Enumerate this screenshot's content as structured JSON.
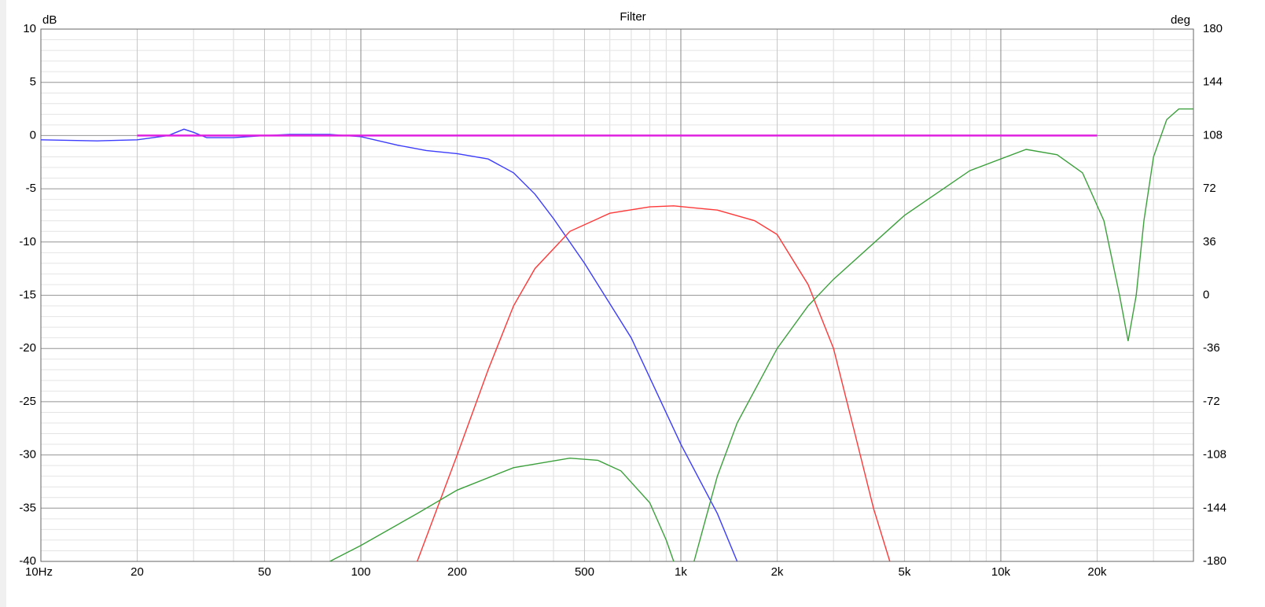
{
  "chart_data": {
    "type": "line",
    "title": "Filter",
    "y_label": "dB",
    "y2_label": "deg",
    "xscale": "log",
    "grid": true,
    "minor_grid": true,
    "xlim": [
      10,
      40000
    ],
    "ylim": [
      -40,
      10
    ],
    "y2lim": [
      -180,
      180
    ],
    "xticks": [
      {
        "value": 10,
        "label": "10Hz"
      },
      20,
      50,
      100,
      200,
      500,
      {
        "value": 1000,
        "label": "1k"
      },
      {
        "value": 2000,
        "label": "2k"
      },
      {
        "value": 5000,
        "label": "5k"
      },
      {
        "value": 10000,
        "label": "10k"
      },
      {
        "value": 20000,
        "label": "20k"
      }
    ],
    "yticks": [
      10,
      5,
      0,
      -5,
      -10,
      -15,
      -20,
      -25,
      -30,
      -35,
      -40
    ],
    "y2ticks": [
      180,
      144,
      108,
      72,
      36,
      0,
      -36,
      -72,
      -108,
      -144,
      -180
    ],
    "series": [
      {
        "color": "#3c3cff",
        "x": [
          10,
          15,
          20,
          25,
          28,
          30,
          33,
          40,
          50,
          60,
          80,
          100,
          130,
          160,
          200,
          250,
          300,
          350,
          400,
          500,
          700,
          1000,
          1300,
          1500
        ],
        "values": [
          -0.4,
          -0.5,
          -0.4,
          0,
          0.6,
          0.3,
          -0.2,
          -0.2,
          0,
          0.1,
          0.1,
          -0.1,
          -0.9,
          -1.4,
          -1.7,
          -2.2,
          -3.5,
          -5.5,
          -7.8,
          -12,
          -19,
          -29,
          -35.5,
          -40
        ]
      },
      {
        "color": "#ff3838",
        "x": [
          150,
          200,
          250,
          300,
          350,
          450,
          600,
          800,
          950,
          1300,
          1700,
          2000,
          2500,
          3000,
          3500,
          4000,
          4500
        ],
        "values": [
          -40,
          -30,
          -22,
          -16,
          -12.5,
          -9,
          -7.3,
          -6.7,
          -6.6,
          -7,
          -8,
          -9.3,
          -14,
          -20,
          -28,
          -35,
          -40
        ]
      },
      {
        "color": "#3ca03c",
        "x": [
          80,
          100,
          150,
          200,
          300,
          450,
          550,
          650,
          800,
          900,
          950,
          1000,
          1100,
          1300,
          1500,
          2000,
          2500,
          3000,
          5000,
          8000,
          12000,
          15000,
          18000,
          21000,
          23500,
          25000,
          26500,
          28000,
          30000,
          33000,
          36000,
          40000
        ],
        "values": [
          -40,
          -38.5,
          -35.5,
          -33.3,
          -31.2,
          -30.3,
          -30.5,
          -31.5,
          -34.5,
          -38,
          -40,
          null,
          -40,
          -32,
          -27,
          -20,
          -16,
          -13.5,
          -7.5,
          -3.3,
          -1.3,
          -1.8,
          -3.5,
          -8,
          -15,
          -19.3,
          -15,
          -8,
          -2,
          1.5,
          2.5,
          2.5
        ]
      },
      {
        "color": "#e020e0",
        "x": [
          20,
          20000
        ],
        "values": [
          0,
          0
        ]
      }
    ]
  }
}
